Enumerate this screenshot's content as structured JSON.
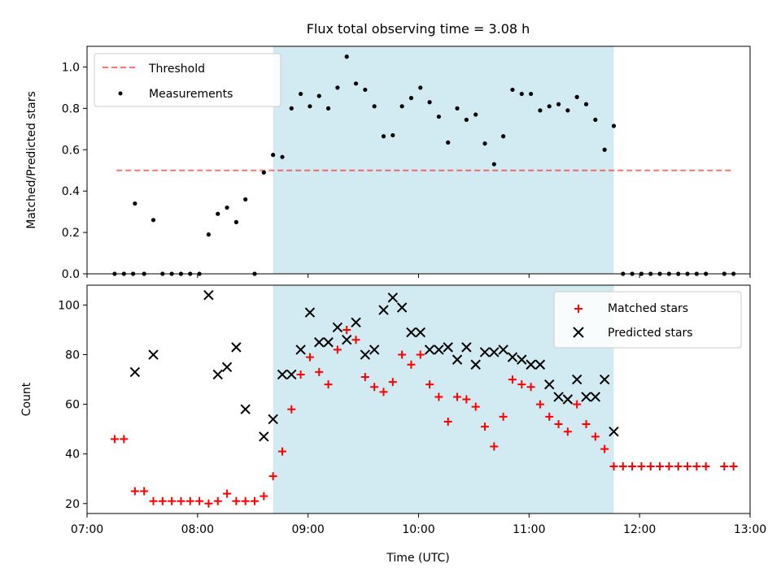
{
  "figure": {
    "title": "Flux total observing time = 3.08 h",
    "xlabel": "Time (UTC)"
  },
  "colors": {
    "shade": "#add8e6",
    "threshold": "#ff0000",
    "measurements": "#000000",
    "matched": "#ff0000",
    "predicted": "#000000"
  },
  "chart_data": [
    {
      "type": "scatter",
      "title": "Flux total observing time = 3.08 h",
      "xlabel": "",
      "ylabel": "Matched/Predicted stars",
      "xlim": [
        "07:00",
        "13:00"
      ],
      "ylim": [
        0.0,
        1.1
      ],
      "yticks": [
        0.0,
        0.2,
        0.4,
        0.6,
        0.8,
        1.0
      ],
      "ytick_labels": [
        "0.0",
        "0.2",
        "0.4",
        "0.6",
        "0.8",
        "1.0"
      ],
      "xticks": [
        "07:00",
        "08:00",
        "09:00",
        "10:00",
        "11:00",
        "12:00",
        "13:00"
      ],
      "grid": false,
      "shaded_region": {
        "from": "08:41",
        "to": "11:46"
      },
      "legend": {
        "position": "top-left",
        "entries": [
          "Threshold",
          "Measurements"
        ]
      },
      "threshold": {
        "name": "Threshold",
        "y": 0.5,
        "x_range": [
          "07:16",
          "12:51"
        ]
      },
      "series": [
        {
          "name": "Measurements",
          "points": [
            [
              "07:15",
              0.0
            ],
            [
              "07:20",
              0.0
            ],
            [
              "07:25",
              0.0
            ],
            [
              "07:26",
              0.34
            ],
            [
              "07:31",
              0.0
            ],
            [
              "07:36",
              0.26
            ],
            [
              "07:41",
              0.0
            ],
            [
              "07:46",
              0.0
            ],
            [
              "07:51",
              0.0
            ],
            [
              "07:56",
              0.0
            ],
            [
              "08:01",
              0.0
            ],
            [
              "08:06",
              0.19
            ],
            [
              "08:11",
              0.29
            ],
            [
              "08:16",
              0.32
            ],
            [
              "08:21",
              0.25
            ],
            [
              "08:26",
              0.36
            ],
            [
              "08:31",
              0.0
            ],
            [
              "08:36",
              0.49
            ],
            [
              "08:41",
              0.575
            ],
            [
              "08:46",
              0.565
            ],
            [
              "08:51",
              0.8
            ],
            [
              "08:56",
              0.87
            ],
            [
              "09:01",
              0.81
            ],
            [
              "09:06",
              0.86
            ],
            [
              "09:11",
              0.8
            ],
            [
              "09:16",
              0.9
            ],
            [
              "09:21",
              1.05
            ],
            [
              "09:26",
              0.92
            ],
            [
              "09:31",
              0.89
            ],
            [
              "09:36",
              0.81
            ],
            [
              "09:41",
              0.665
            ],
            [
              "09:46",
              0.67
            ],
            [
              "09:51",
              0.81
            ],
            [
              "09:56",
              0.85
            ],
            [
              "10:01",
              0.9
            ],
            [
              "10:06",
              0.83
            ],
            [
              "10:11",
              0.76
            ],
            [
              "10:16",
              0.635
            ],
            [
              "10:21",
              0.8
            ],
            [
              "10:26",
              0.745
            ],
            [
              "10:31",
              0.77
            ],
            [
              "10:36",
              0.63
            ],
            [
              "10:41",
              0.53
            ],
            [
              "10:46",
              0.665
            ],
            [
              "10:51",
              0.89
            ],
            [
              "10:56",
              0.87
            ],
            [
              "11:01",
              0.87
            ],
            [
              "11:06",
              0.79
            ],
            [
              "11:11",
              0.81
            ],
            [
              "11:16",
              0.82
            ],
            [
              "11:21",
              0.79
            ],
            [
              "11:26",
              0.855
            ],
            [
              "11:31",
              0.82
            ],
            [
              "11:36",
              0.745
            ],
            [
              "11:41",
              0.6
            ],
            [
              "11:46",
              0.715
            ],
            [
              "11:51",
              0.0
            ],
            [
              "11:56",
              0.0
            ],
            [
              "12:01",
              0.0
            ],
            [
              "12:06",
              0.0
            ],
            [
              "12:11",
              0.0
            ],
            [
              "12:16",
              0.0
            ],
            [
              "12:21",
              0.0
            ],
            [
              "12:26",
              0.0
            ],
            [
              "12:31",
              0.0
            ],
            [
              "12:36",
              0.0
            ],
            [
              "12:46",
              0.0
            ],
            [
              "12:51",
              0.0
            ]
          ]
        }
      ]
    },
    {
      "type": "scatter",
      "title": "",
      "xlabel": "Time (UTC)",
      "ylabel": "Count",
      "xlim": [
        "07:00",
        "13:00"
      ],
      "ylim": [
        16,
        108
      ],
      "yticks": [
        20,
        40,
        60,
        80,
        100
      ],
      "ytick_labels": [
        "20",
        "40",
        "60",
        "80",
        "100"
      ],
      "xticks": [
        "07:00",
        "08:00",
        "09:00",
        "10:00",
        "11:00",
        "12:00",
        "13:00"
      ],
      "xtick_labels": [
        "07:00",
        "08:00",
        "09:00",
        "10:00",
        "11:00",
        "12:00",
        "13:00"
      ],
      "grid": false,
      "shaded_region": {
        "from": "08:41",
        "to": "11:46"
      },
      "legend": {
        "position": "top-right",
        "entries": [
          "Matched stars",
          "Predicted stars"
        ]
      },
      "series": [
        {
          "name": "Matched stars",
          "marker": "plus",
          "points": [
            [
              "07:15",
              46
            ],
            [
              "07:20",
              46
            ],
            [
              "07:26",
              25
            ],
            [
              "07:31",
              25
            ],
            [
              "07:36",
              21
            ],
            [
              "07:41",
              21
            ],
            [
              "07:46",
              21
            ],
            [
              "07:51",
              21
            ],
            [
              "07:56",
              21
            ],
            [
              "08:01",
              21
            ],
            [
              "08:06",
              20
            ],
            [
              "08:11",
              21
            ],
            [
              "08:16",
              24
            ],
            [
              "08:21",
              21
            ],
            [
              "08:26",
              21
            ],
            [
              "08:31",
              21
            ],
            [
              "08:36",
              23
            ],
            [
              "08:41",
              31
            ],
            [
              "08:46",
              41
            ],
            [
              "08:51",
              58
            ],
            [
              "08:56",
              72
            ],
            [
              "09:01",
              79
            ],
            [
              "09:06",
              73
            ],
            [
              "09:11",
              68
            ],
            [
              "09:16",
              82
            ],
            [
              "09:21",
              90
            ],
            [
              "09:26",
              86
            ],
            [
              "09:31",
              71
            ],
            [
              "09:36",
              67
            ],
            [
              "09:41",
              65
            ],
            [
              "09:46",
              69
            ],
            [
              "09:51",
              80
            ],
            [
              "09:56",
              76
            ],
            [
              "10:01",
              80
            ],
            [
              "10:06",
              68
            ],
            [
              "10:11",
              63
            ],
            [
              "10:16",
              53
            ],
            [
              "10:21",
              63
            ],
            [
              "10:26",
              62
            ],
            [
              "10:31",
              59
            ],
            [
              "10:36",
              51
            ],
            [
              "10:41",
              43
            ],
            [
              "10:46",
              55
            ],
            [
              "10:51",
              70
            ],
            [
              "10:56",
              68
            ],
            [
              "11:01",
              67
            ],
            [
              "11:06",
              60
            ],
            [
              "11:11",
              55
            ],
            [
              "11:16",
              52
            ],
            [
              "11:21",
              49
            ],
            [
              "11:26",
              60
            ],
            [
              "11:31",
              52
            ],
            [
              "11:36",
              47
            ],
            [
              "11:41",
              42
            ],
            [
              "11:46",
              35
            ],
            [
              "11:51",
              35
            ],
            [
              "11:56",
              35
            ],
            [
              "12:01",
              35
            ],
            [
              "12:06",
              35
            ],
            [
              "12:11",
              35
            ],
            [
              "12:16",
              35
            ],
            [
              "12:21",
              35
            ],
            [
              "12:26",
              35
            ],
            [
              "12:31",
              35
            ],
            [
              "12:36",
              35
            ],
            [
              "12:46",
              35
            ],
            [
              "12:51",
              35
            ]
          ]
        },
        {
          "name": "Predicted stars",
          "marker": "x",
          "points": [
            [
              "07:26",
              73
            ],
            [
              "07:36",
              80
            ],
            [
              "08:06",
              104
            ],
            [
              "08:11",
              72
            ],
            [
              "08:16",
              75
            ],
            [
              "08:21",
              83
            ],
            [
              "08:26",
              58
            ],
            [
              "08:36",
              47
            ],
            [
              "08:41",
              54
            ],
            [
              "08:46",
              72
            ],
            [
              "08:51",
              72
            ],
            [
              "08:56",
              82
            ],
            [
              "09:01",
              97
            ],
            [
              "09:06",
              85
            ],
            [
              "09:11",
              85
            ],
            [
              "09:16",
              91
            ],
            [
              "09:21",
              86
            ],
            [
              "09:26",
              93
            ],
            [
              "09:31",
              80
            ],
            [
              "09:36",
              82
            ],
            [
              "09:41",
              98
            ],
            [
              "09:46",
              103
            ],
            [
              "09:51",
              99
            ],
            [
              "09:56",
              89
            ],
            [
              "10:01",
              89
            ],
            [
              "10:06",
              82
            ],
            [
              "10:11",
              82
            ],
            [
              "10:16",
              83
            ],
            [
              "10:21",
              78
            ],
            [
              "10:26",
              83
            ],
            [
              "10:31",
              76
            ],
            [
              "10:36",
              81
            ],
            [
              "10:41",
              81
            ],
            [
              "10:46",
              82
            ],
            [
              "10:51",
              79
            ],
            [
              "10:56",
              78
            ],
            [
              "11:01",
              76
            ],
            [
              "11:06",
              76
            ],
            [
              "11:11",
              68
            ],
            [
              "11:16",
              63
            ],
            [
              "11:21",
              62
            ],
            [
              "11:26",
              70
            ],
            [
              "11:31",
              63
            ],
            [
              "11:36",
              63
            ],
            [
              "11:41",
              70
            ],
            [
              "11:46",
              49
            ]
          ]
        }
      ]
    }
  ]
}
